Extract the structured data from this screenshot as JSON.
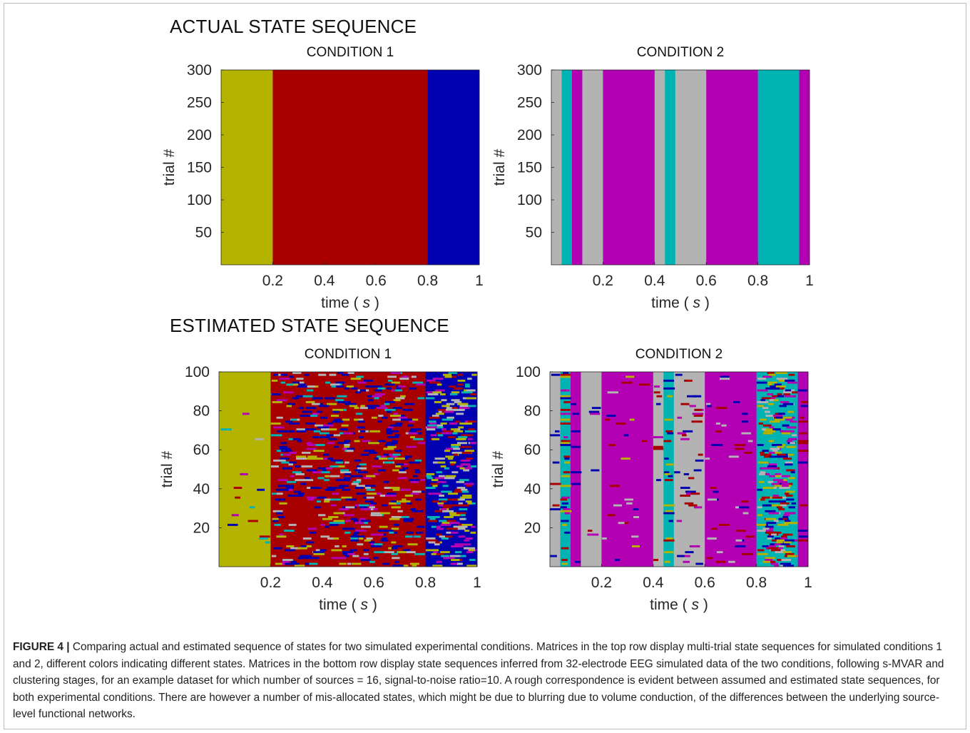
{
  "section_titles": {
    "actual": "ACTUAL STATE SEQUENCE",
    "estimated": "ESTIMATED STATE SEQUENCE"
  },
  "caption": {
    "label": "FIGURE 4 |",
    "text": "Comparing actual and estimated sequence of states for two simulated experimental conditions. Matrices in the top row display multi-trial state sequences for simulated conditions 1 and 2, different colors indicating different states. Matrices in the bottom row display state sequences inferred from 32-electrode EEG simulated data of the two conditions, following s-MVAR and clustering stages, for an example dataset for which number of sources = 16, signal-to-noise ratio=10. A rough correspondence is evident between assumed and estimated state sequences, for both experimental conditions. There are however a number of mis-allocated states, which might be due to blurring due to volume conduction, of the differences between the underlying source-level functional networks."
  },
  "state_colors": {
    "olive": "#b3b300",
    "red": "#a80000",
    "blue": "#0000b0",
    "gray": "#b3b3b3",
    "teal": "#00b3b3",
    "magenta": "#b300b3"
  },
  "chart_data": [
    {
      "type": "heatmap",
      "title": "CONDITION 1",
      "xlabel": "time",
      "xlabel_unit": "s",
      "ylabel": "trial #",
      "xlim": [
        0,
        1
      ],
      "ylim": [
        0,
        300
      ],
      "xticks": [
        0.2,
        0.4,
        0.6,
        0.8,
        1
      ],
      "xtick_labels": [
        "0.2",
        "0.4",
        "0.6",
        "0.8",
        "1"
      ],
      "yticks": [
        50,
        100,
        150,
        200,
        250,
        300
      ],
      "ytick_labels": [
        "50",
        "100",
        "150",
        "200",
        "250",
        "300"
      ],
      "segments": [
        {
          "start": 0.0,
          "end": 0.2,
          "state": "olive"
        },
        {
          "start": 0.2,
          "end": 0.8,
          "state": "red"
        },
        {
          "start": 0.8,
          "end": 1.0,
          "state": "blue"
        }
      ]
    },
    {
      "type": "heatmap",
      "title": "CONDITION 2",
      "xlabel": "time",
      "xlabel_unit": "s",
      "ylabel": "trial #",
      "xlim": [
        0,
        1
      ],
      "ylim": [
        0,
        300
      ],
      "xticks": [
        0.2,
        0.4,
        0.6,
        0.8,
        1
      ],
      "xtick_labels": [
        "0.2",
        "0.4",
        "0.6",
        "0.8",
        "1"
      ],
      "yticks": [
        50,
        100,
        150,
        200,
        250,
        300
      ],
      "ytick_labels": [
        "50",
        "100",
        "150",
        "200",
        "250",
        "300"
      ],
      "segments": [
        {
          "start": 0.0,
          "end": 0.04,
          "state": "gray"
        },
        {
          "start": 0.04,
          "end": 0.08,
          "state": "teal"
        },
        {
          "start": 0.08,
          "end": 0.12,
          "state": "magenta"
        },
        {
          "start": 0.12,
          "end": 0.2,
          "state": "gray"
        },
        {
          "start": 0.2,
          "end": 0.4,
          "state": "magenta"
        },
        {
          "start": 0.4,
          "end": 0.44,
          "state": "gray"
        },
        {
          "start": 0.44,
          "end": 0.48,
          "state": "teal"
        },
        {
          "start": 0.48,
          "end": 0.6,
          "state": "gray"
        },
        {
          "start": 0.6,
          "end": 0.8,
          "state": "magenta"
        },
        {
          "start": 0.8,
          "end": 0.96,
          "state": "teal"
        },
        {
          "start": 0.96,
          "end": 1.0,
          "state": "magenta"
        }
      ]
    },
    {
      "type": "heatmap",
      "title": "CONDITION 1",
      "xlabel": "time",
      "xlabel_unit": "s",
      "ylabel": "trial #",
      "xlim": [
        0,
        1
      ],
      "ylim": [
        0,
        100
      ],
      "xticks": [
        0.2,
        0.4,
        0.6,
        0.8,
        1
      ],
      "xtick_labels": [
        "0.2",
        "0.4",
        "0.6",
        "0.8",
        "1"
      ],
      "yticks": [
        20,
        40,
        60,
        80,
        100
      ],
      "ytick_labels": [
        "20",
        "40",
        "60",
        "80",
        "100"
      ],
      "segments": [
        {
          "start": 0.0,
          "end": 0.2,
          "state": "olive",
          "noise": 0.03,
          "noise_states": [
            "teal",
            "red",
            "blue",
            "magenta",
            "gray"
          ]
        },
        {
          "start": 0.2,
          "end": 0.8,
          "state": "red",
          "noise": 0.35,
          "noise_states": [
            "blue",
            "blue",
            "blue",
            "gray",
            "olive",
            "teal",
            "magenta"
          ]
        },
        {
          "start": 0.8,
          "end": 1.0,
          "state": "blue",
          "noise": 0.45,
          "noise_states": [
            "teal",
            "gray",
            "red",
            "olive",
            "magenta"
          ]
        }
      ]
    },
    {
      "type": "heatmap",
      "title": "CONDITION 2",
      "xlabel": "time",
      "xlabel_unit": "s",
      "ylabel": "trial #",
      "xlim": [
        0,
        1
      ],
      "ylim": [
        0,
        100
      ],
      "xticks": [
        0.2,
        0.4,
        0.6,
        0.8,
        1
      ],
      "xtick_labels": [
        "0.2",
        "0.4",
        "0.6",
        "0.8",
        "1"
      ],
      "yticks": [
        20,
        40,
        60,
        80,
        100
      ],
      "ytick_labels": [
        "20",
        "40",
        "60",
        "80",
        "100"
      ],
      "segments": [
        {
          "start": 0.0,
          "end": 0.04,
          "state": "gray",
          "noise": 0.06,
          "noise_states": [
            "blue",
            "red"
          ]
        },
        {
          "start": 0.04,
          "end": 0.08,
          "state": "teal",
          "noise": 0.35,
          "noise_states": [
            "blue",
            "red",
            "magenta",
            "olive"
          ]
        },
        {
          "start": 0.08,
          "end": 0.12,
          "state": "magenta",
          "noise": 0.05,
          "noise_states": [
            "blue"
          ]
        },
        {
          "start": 0.12,
          "end": 0.2,
          "state": "gray",
          "noise": 0.04,
          "noise_states": [
            "blue",
            "red",
            "magenta"
          ]
        },
        {
          "start": 0.2,
          "end": 0.4,
          "state": "magenta",
          "noise": 0.05,
          "noise_states": [
            "blue",
            "red",
            "gray",
            "olive"
          ]
        },
        {
          "start": 0.4,
          "end": 0.44,
          "state": "gray",
          "noise": 0.1,
          "noise_states": [
            "blue",
            "red",
            "magenta"
          ]
        },
        {
          "start": 0.44,
          "end": 0.48,
          "state": "teal",
          "noise": 0.3,
          "noise_states": [
            "blue",
            "olive",
            "red"
          ]
        },
        {
          "start": 0.48,
          "end": 0.6,
          "state": "gray",
          "noise": 0.08,
          "noise_states": [
            "blue",
            "magenta",
            "red"
          ]
        },
        {
          "start": 0.6,
          "end": 0.8,
          "state": "magenta",
          "noise": 0.06,
          "noise_states": [
            "blue",
            "red",
            "gray"
          ]
        },
        {
          "start": 0.8,
          "end": 0.96,
          "state": "teal",
          "noise": 0.5,
          "noise_states": [
            "blue",
            "gray",
            "magenta",
            "red",
            "olive"
          ]
        },
        {
          "start": 0.96,
          "end": 1.0,
          "state": "magenta",
          "noise": 0.12,
          "noise_states": [
            "blue",
            "red"
          ]
        }
      ]
    }
  ]
}
